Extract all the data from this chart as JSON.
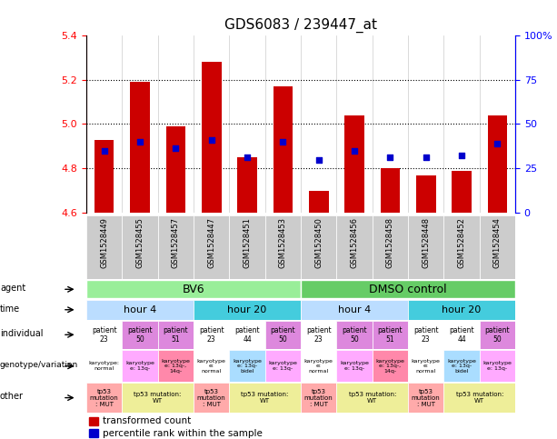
{
  "title": "GDS6083 / 239447_at",
  "samples": [
    "GSM1528449",
    "GSM1528455",
    "GSM1528457",
    "GSM1528447",
    "GSM1528451",
    "GSM1528453",
    "GSM1528450",
    "GSM1528456",
    "GSM1528458",
    "GSM1528448",
    "GSM1528452",
    "GSM1528454"
  ],
  "bar_values": [
    4.93,
    5.19,
    4.99,
    5.28,
    4.85,
    5.17,
    4.7,
    5.04,
    4.8,
    4.77,
    4.79,
    5.04
  ],
  "bar_bottom": 4.6,
  "blue_dots": [
    4.88,
    4.92,
    4.89,
    4.93,
    4.85,
    4.92,
    4.84,
    4.88,
    4.85,
    4.85,
    4.86,
    4.91
  ],
  "ylim": [
    4.6,
    5.4
  ],
  "yticks_left": [
    4.6,
    4.8,
    5.0,
    5.2,
    5.4
  ],
  "yticks_right": [
    0,
    25,
    50,
    75,
    100
  ],
  "bar_color": "#cc0000",
  "dot_color": "#0000cc",
  "individual_colors": [
    "#ffffff",
    "#dd88dd",
    "#dd88dd",
    "#ffffff",
    "#ffffff",
    "#dd88dd",
    "#ffffff",
    "#dd88dd",
    "#dd88dd",
    "#ffffff",
    "#ffffff",
    "#dd88dd"
  ],
  "individual_labels": [
    "patient\n23",
    "patient\n50",
    "patient\n51",
    "patient\n23",
    "patient\n44",
    "patient\n50",
    "patient\n23",
    "patient\n50",
    "patient\n51",
    "patient\n23",
    "patient\n44",
    "patient\n50"
  ],
  "genotype_colors": [
    "#ffffff",
    "#ffaaff",
    "#ff88aa",
    "#ffffff",
    "#aaddff",
    "#ffaaff",
    "#ffffff",
    "#ffaaff",
    "#ff88aa",
    "#ffffff",
    "#aaddff",
    "#ffaaff"
  ],
  "genotype_labels": [
    "karyotype:\nnormal",
    "karyotype\ne: 13q-",
    "karyotype\ne: 13q-,\n14q-",
    "karyotype\ne:\nnormal",
    "karyotype\ne: 13q-\nbidel",
    "karyotype\ne: 13q-",
    "karyotype\ne:\nnormal",
    "karyotype\ne: 13q-",
    "karyotype\ne: 13q-,\n14q-",
    "karyotype\ne:\nnormal",
    "karyotype\ne: 13q-\nbidel",
    "karyotype\ne: 13q-"
  ],
  "row_labels": [
    "agent",
    "time",
    "individual",
    "genotype/variation",
    "other"
  ],
  "legend_items": [
    "transformed count",
    "percentile rank within the sample"
  ],
  "xticklabel_bg": "#cccccc",
  "agent_bv6_color": "#99ee99",
  "agent_dmso_color": "#66cc66",
  "time_h4_color": "#bbddff",
  "time_h20_color": "#44ccdd"
}
